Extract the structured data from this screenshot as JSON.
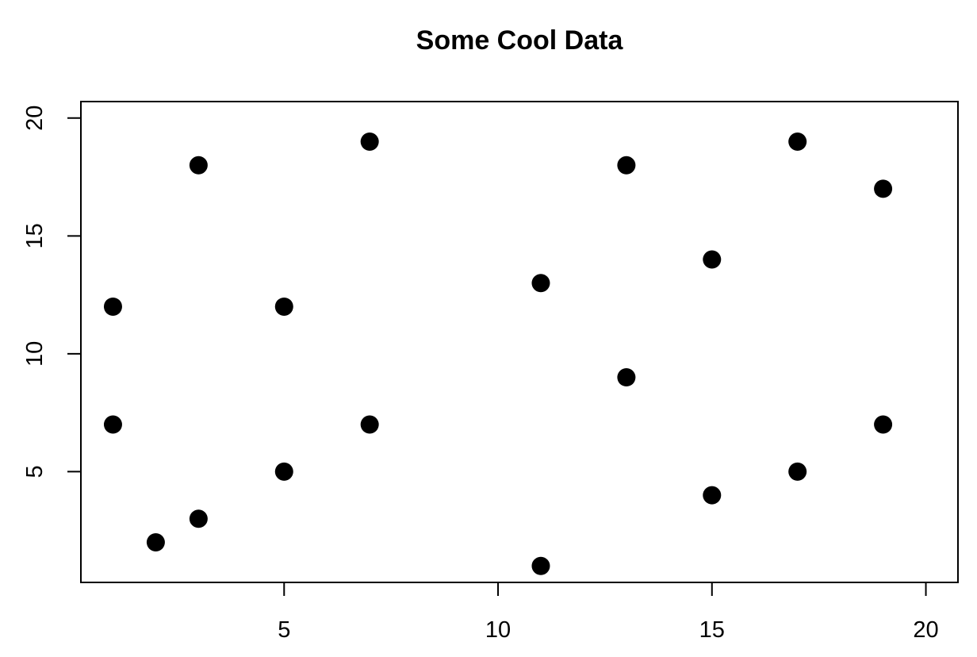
{
  "chart_data": {
    "type": "scatter",
    "title": "Some Cool Data",
    "xlabel": "",
    "ylabel": "",
    "xlim": [
      0.25,
      20.75
    ],
    "ylim": [
      0.3,
      20.7
    ],
    "xticks": [
      5,
      10,
      15,
      20
    ],
    "yticks": [
      5,
      10,
      15,
      20
    ],
    "grid": false,
    "series": [
      {
        "points": [
          [
            1,
            12
          ],
          [
            1,
            7
          ],
          [
            2,
            2
          ],
          [
            3,
            18
          ],
          [
            3,
            3
          ],
          [
            5,
            12
          ],
          [
            5,
            5
          ],
          [
            7,
            19
          ],
          [
            7,
            7
          ],
          [
            11,
            13
          ],
          [
            11,
            1
          ],
          [
            13,
            18
          ],
          [
            13,
            9
          ],
          [
            15,
            14
          ],
          [
            15,
            4
          ],
          [
            17,
            19
          ],
          [
            17,
            5
          ],
          [
            19,
            17
          ],
          [
            19,
            7
          ]
        ]
      }
    ]
  }
}
